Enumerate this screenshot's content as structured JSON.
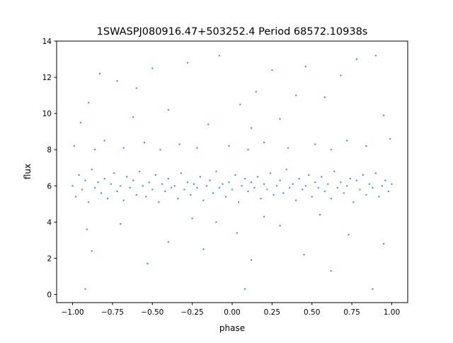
{
  "chart_data": {
    "type": "scatter",
    "title": "1SWASPJ080916.47+503252.4 Period 68572.10938s",
    "xlabel": "phase",
    "ylabel": "flux",
    "xlim": [
      -1.1,
      1.1
    ],
    "ylim": [
      -0.45,
      14
    ],
    "xticks": [
      -1.0,
      -0.75,
      -0.5,
      -0.25,
      0.0,
      0.25,
      0.5,
      0.75,
      1.0
    ],
    "xtick_labels": [
      "−1.00",
      "−0.75",
      "−0.50",
      "−0.25",
      "0.00",
      "0.25",
      "0.50",
      "0.75",
      "1.00"
    ],
    "yticks": [
      0,
      2,
      4,
      6,
      8,
      10,
      12,
      14
    ],
    "ytick_labels": [
      "0",
      "2",
      "4",
      "6",
      "8",
      "10",
      "12",
      "14"
    ],
    "grid": false,
    "color": "#1f77b4",
    "points": [
      [
        -1.0,
        6.0
      ],
      [
        -0.98,
        5.4
      ],
      [
        -0.96,
        6.6
      ],
      [
        -0.94,
        5.8
      ],
      [
        -0.92,
        6.3
      ],
      [
        -0.9,
        5.1
      ],
      [
        -0.88,
        6.9
      ],
      [
        -0.86,
        5.9
      ],
      [
        -0.84,
        6.2
      ],
      [
        -0.82,
        5.6
      ],
      [
        -0.8,
        6.4
      ],
      [
        -0.78,
        5.3
      ],
      [
        -0.76,
        6.1
      ],
      [
        -0.74,
        6.7
      ],
      [
        -0.72,
        5.7
      ],
      [
        -0.7,
        6.0
      ],
      [
        -0.68,
        5.2
      ],
      [
        -0.66,
        6.5
      ],
      [
        -0.64,
        5.9
      ],
      [
        -0.62,
        6.3
      ],
      [
        -0.6,
        5.5
      ],
      [
        -0.58,
        6.8
      ],
      [
        -0.56,
        6.0
      ],
      [
        -0.54,
        5.4
      ],
      [
        -0.52,
        6.2
      ],
      [
        -0.5,
        5.8
      ],
      [
        -0.48,
        6.6
      ],
      [
        -0.46,
        5.1
      ],
      [
        -0.44,
        6.1
      ],
      [
        -0.42,
        5.7
      ],
      [
        -0.4,
        6.4
      ],
      [
        -0.38,
        5.9
      ],
      [
        -0.36,
        6.0
      ],
      [
        -0.34,
        5.3
      ],
      [
        -0.32,
        6.7
      ],
      [
        -0.3,
        5.8
      ],
      [
        -0.28,
        6.2
      ],
      [
        -0.26,
        5.5
      ],
      [
        -0.24,
        6.1
      ],
      [
        -0.22,
        5.9
      ],
      [
        -0.2,
        6.5
      ],
      [
        -0.18,
        5.2
      ],
      [
        -0.16,
        6.0
      ],
      [
        -0.14,
        6.3
      ],
      [
        -0.12,
        5.6
      ],
      [
        -0.1,
        6.8
      ],
      [
        -0.08,
        5.9
      ],
      [
        -0.06,
        6.1
      ],
      [
        -0.04,
        5.4
      ],
      [
        -0.02,
        6.2
      ],
      [
        0.0,
        5.8
      ],
      [
        0.02,
        6.6
      ],
      [
        0.04,
        5.1
      ],
      [
        0.06,
        6.0
      ],
      [
        0.08,
        6.4
      ],
      [
        0.1,
        5.7
      ],
      [
        0.12,
        6.2
      ],
      [
        0.14,
        5.9
      ],
      [
        0.16,
        6.5
      ],
      [
        0.18,
        5.3
      ],
      [
        0.2,
        6.1
      ],
      [
        0.22,
        5.8
      ],
      [
        0.24,
        6.7
      ],
      [
        0.26,
        5.5
      ],
      [
        0.28,
        6.0
      ],
      [
        0.3,
        6.3
      ],
      [
        0.32,
        5.6
      ],
      [
        0.34,
        6.9
      ],
      [
        0.36,
        5.9
      ],
      [
        0.38,
        6.1
      ],
      [
        0.4,
        5.2
      ],
      [
        0.42,
        6.4
      ],
      [
        0.44,
        5.8
      ],
      [
        0.46,
        6.0
      ],
      [
        0.48,
        6.6
      ],
      [
        0.5,
        5.4
      ],
      [
        0.52,
        6.2
      ],
      [
        0.54,
        5.9
      ],
      [
        0.56,
        6.5
      ],
      [
        0.58,
        5.7
      ],
      [
        0.6,
        6.1
      ],
      [
        0.62,
        5.3
      ],
      [
        0.64,
        6.8
      ],
      [
        0.66,
        5.9
      ],
      [
        0.68,
        6.2
      ],
      [
        0.7,
        5.6
      ],
      [
        0.72,
        6.0
      ],
      [
        0.74,
        6.4
      ],
      [
        0.76,
        5.1
      ],
      [
        0.78,
        6.3
      ],
      [
        0.8,
        5.8
      ],
      [
        0.82,
        6.6
      ],
      [
        0.84,
        5.5
      ],
      [
        0.86,
        6.1
      ],
      [
        0.88,
        5.9
      ],
      [
        0.9,
        6.7
      ],
      [
        0.92,
        5.4
      ],
      [
        0.94,
        6.0
      ],
      [
        0.96,
        6.3
      ],
      [
        0.98,
        5.7
      ],
      [
        1.0,
        6.1
      ],
      [
        -0.99,
        8.2
      ],
      [
        -0.95,
        9.5
      ],
      [
        -0.9,
        10.6
      ],
      [
        -0.86,
        8.0
      ],
      [
        -0.8,
        8.5
      ],
      [
        -0.72,
        11.8
      ],
      [
        -0.68,
        8.1
      ],
      [
        -0.62,
        9.8
      ],
      [
        -0.55,
        8.4
      ],
      [
        -0.5,
        12.5
      ],
      [
        -0.45,
        8.0
      ],
      [
        -0.4,
        10.2
      ],
      [
        -0.33,
        8.3
      ],
      [
        -0.28,
        12.8
      ],
      [
        -0.22,
        8.1
      ],
      [
        -0.15,
        9.4
      ],
      [
        -0.08,
        13.2
      ],
      [
        -0.02,
        8.2
      ],
      [
        0.05,
        10.5
      ],
      [
        0.1,
        8.0
      ],
      [
        0.15,
        11.2
      ],
      [
        0.2,
        8.4
      ],
      [
        0.25,
        12.4
      ],
      [
        0.3,
        9.7
      ],
      [
        0.35,
        8.1
      ],
      [
        0.4,
        11.0
      ],
      [
        0.46,
        12.6
      ],
      [
        0.52,
        8.3
      ],
      [
        0.58,
        10.9
      ],
      [
        0.62,
        8.0
      ],
      [
        0.68,
        12.1
      ],
      [
        0.72,
        8.5
      ],
      [
        0.78,
        13.0
      ],
      [
        0.84,
        8.2
      ],
      [
        0.9,
        13.2
      ],
      [
        0.95,
        9.9
      ],
      [
        0.99,
        8.6
      ],
      [
        -0.83,
        12.2
      ],
      [
        -0.6,
        11.4
      ],
      [
        0.12,
        9.2
      ],
      [
        -0.91,
        3.6
      ],
      [
        -0.88,
        2.4
      ],
      [
        -0.92,
        0.3
      ],
      [
        -0.7,
        3.9
      ],
      [
        -0.53,
        1.7
      ],
      [
        -0.4,
        2.9
      ],
      [
        -0.18,
        2.5
      ],
      [
        0.03,
        3.4
      ],
      [
        0.08,
        0.3
      ],
      [
        0.12,
        1.9
      ],
      [
        0.3,
        3.8
      ],
      [
        0.45,
        2.2
      ],
      [
        0.62,
        1.3
      ],
      [
        0.73,
        3.3
      ],
      [
        0.88,
        0.3
      ],
      [
        0.95,
        2.8
      ],
      [
        -0.25,
        4.2
      ],
      [
        0.55,
        4.4
      ],
      [
        -0.1,
        4.0
      ],
      [
        0.2,
        4.3
      ]
    ]
  }
}
